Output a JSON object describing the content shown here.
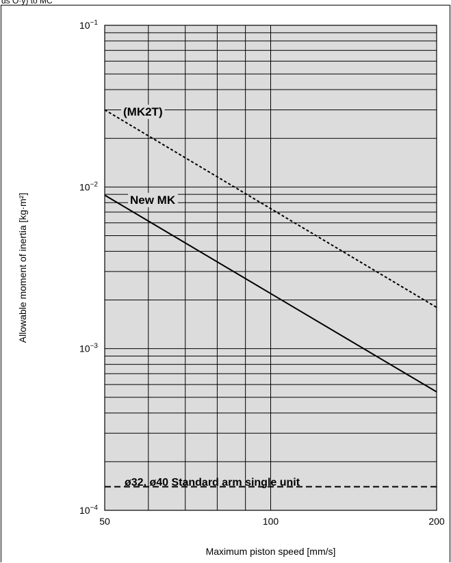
{
  "header_fragment": "ds O·y) to MC",
  "chart_data": {
    "type": "line",
    "xscale": "log",
    "yscale": "log",
    "xlim": [
      50,
      200
    ],
    "ylim": [
      0.0001,
      0.1
    ],
    "xlabel": "Maximum piston speed [mm/s]",
    "ylabel": "Allowable moment of inertia [kg·m²]",
    "xticks": [
      {
        "value": 50,
        "label": "50"
      },
      {
        "value": 100,
        "label": "100"
      },
      {
        "value": 200,
        "label": "200"
      }
    ],
    "yticks": [
      {
        "value": 0.1,
        "mantissa": "10",
        "exp": "−1"
      },
      {
        "value": 0.01,
        "mantissa": "10",
        "exp": "−2"
      },
      {
        "value": 0.001,
        "mantissa": "10",
        "exp": "−3"
      },
      {
        "value": 0.0001,
        "mantissa": "10",
        "exp": "−4"
      }
    ],
    "x_minor_grid": [
      60,
      70,
      80,
      90
    ],
    "grid": true,
    "series": [
      {
        "name": "(MK2T)",
        "style": "dotted",
        "x": [
          50,
          200
        ],
        "y": [
          0.03,
          0.0018
        ]
      },
      {
        "name": "New MK",
        "style": "solid",
        "x": [
          50,
          200
        ],
        "y": [
          0.0089,
          0.00054
        ]
      },
      {
        "name": "ø32, ø40 Standard arm single unit",
        "style": "dashed",
        "x": [
          50,
          200
        ],
        "y": [
          0.00014,
          0.00014
        ]
      }
    ],
    "colors": {
      "plot_background": "#dcdcdc",
      "lines": "#000000"
    }
  }
}
